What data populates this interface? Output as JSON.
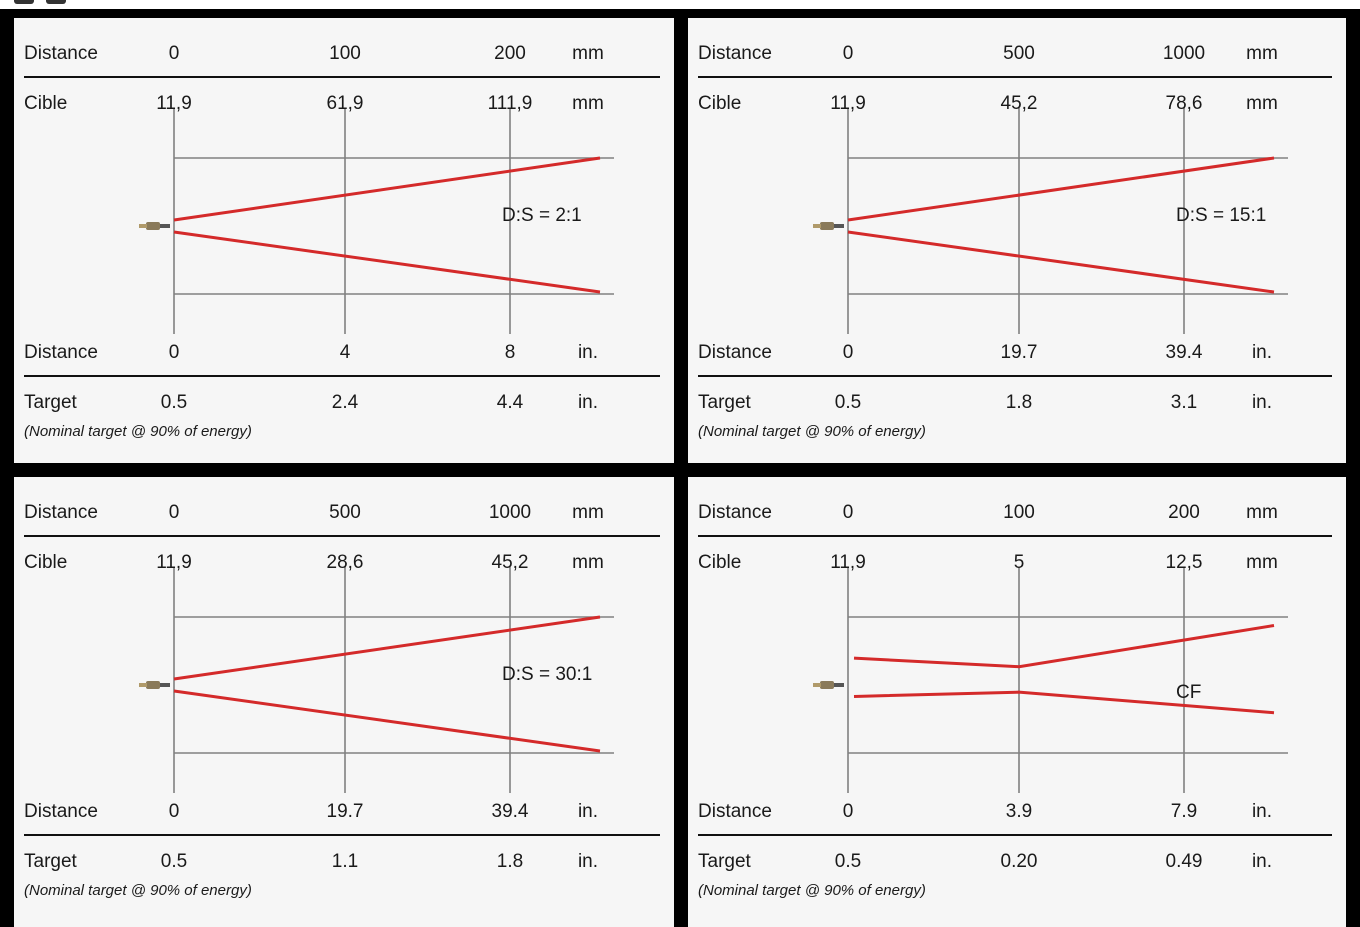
{
  "labels": {
    "distance": "Distance",
    "cible": "Cible",
    "target": "Target",
    "mm": "mm",
    "inch": "in.",
    "note": "(Nominal target @ 90% of energy)"
  },
  "colors": {
    "beam": "#d42a2a",
    "grid": "#808080",
    "panel_bg": "#f6f6f6",
    "frame": "#000000"
  },
  "panels": [
    {
      "distance_mm": [
        "0",
        "100",
        "200"
      ],
      "cible_mm": [
        "11,9",
        "61,9",
        "111,9"
      ],
      "distance_in": [
        "0",
        "4",
        "8"
      ],
      "target_in": [
        "0.5",
        "2.4",
        "4.4"
      ],
      "ratio": "D:S = 2:1",
      "beam_end_half_width": [
        0.06,
        0.42,
        0.77
      ],
      "beam_shape": "diverging"
    },
    {
      "distance_mm": [
        "0",
        "500",
        "1000"
      ],
      "cible_mm": [
        "11,9",
        "45,2",
        "78,6"
      ],
      "distance_in": [
        "0",
        "19.7",
        "39.4"
      ],
      "target_in": [
        "0.5",
        "1.8",
        "3.1"
      ],
      "ratio": "D:S = 15:1",
      "beam_end_half_width": [
        0.06,
        0.42,
        0.77
      ],
      "beam_shape": "diverging"
    },
    {
      "distance_mm": [
        "0",
        "500",
        "1000"
      ],
      "cible_mm": [
        "11,9",
        "28,6",
        "45,2"
      ],
      "distance_in": [
        "0",
        "19.7",
        "39.4"
      ],
      "target_in": [
        "0.5",
        "1.1",
        "1.8"
      ],
      "ratio": "D:S = 30:1",
      "beam_end_half_width": [
        0.06,
        0.42,
        0.77
      ],
      "beam_shape": "diverging"
    },
    {
      "distance_mm": [
        "0",
        "100",
        "200"
      ],
      "cible_mm": [
        "11,9",
        "5",
        "12,5"
      ],
      "distance_in": [
        "0",
        "3.9",
        "7.9"
      ],
      "target_in": [
        "0.5",
        "0.20",
        "0.49"
      ],
      "ratio": "CF",
      "beam_end_half_width": [
        0.11,
        0.06,
        0.3
      ],
      "beam_shape": "focused"
    }
  ]
}
